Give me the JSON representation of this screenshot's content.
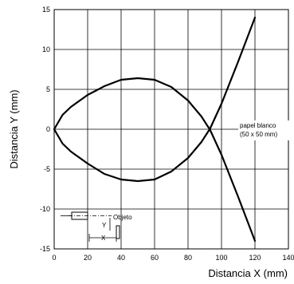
{
  "chart_data": {
    "type": "line",
    "title": "",
    "xlabel": "Distancia X (mm)",
    "ylabel": "Distancia Y (mm)",
    "xlim": [
      0,
      140
    ],
    "ylim": [
      -15,
      15
    ],
    "x_ticks": [
      "0",
      "20",
      "40",
      "60",
      "80",
      "100",
      "120",
      "140"
    ],
    "y_ticks": [
      "15",
      "10",
      "5",
      "0",
      "-5",
      "-10",
      "-15"
    ],
    "grid": true,
    "series": [
      {
        "points": [
          [
            0,
            0
          ],
          [
            5,
            1.8
          ],
          [
            10,
            2.8
          ],
          [
            20,
            4.3
          ],
          [
            30,
            5.4
          ],
          [
            40,
            6.2
          ],
          [
            50,
            6.4
          ],
          [
            60,
            6.2
          ],
          [
            70,
            5.3
          ],
          [
            80,
            3.6
          ],
          [
            88,
            1.6
          ],
          [
            92,
            0.3
          ],
          [
            93,
            0
          ],
          [
            100,
            -3.2
          ],
          [
            110,
            -8.5
          ],
          [
            120,
            -14
          ]
        ]
      },
      {
        "points": [
          [
            0,
            0
          ],
          [
            5,
            -1.8
          ],
          [
            10,
            -2.8
          ],
          [
            20,
            -4.3
          ],
          [
            30,
            -5.6
          ],
          [
            40,
            -6.3
          ],
          [
            50,
            -6.5
          ],
          [
            60,
            -6.3
          ],
          [
            70,
            -5.3
          ],
          [
            80,
            -3.6
          ],
          [
            88,
            -1.6
          ],
          [
            92,
            -0.3
          ],
          [
            93,
            0
          ],
          [
            100,
            3.2
          ],
          [
            110,
            8.5
          ],
          [
            120,
            14
          ]
        ]
      }
    ],
    "annotations": {
      "paper": {
        "line1": "papel blanco",
        "line2": "(50 x 50 mm)"
      },
      "inset": {
        "object_label": "Objeto",
        "y_label": "Y",
        "x_label": "X"
      }
    }
  }
}
